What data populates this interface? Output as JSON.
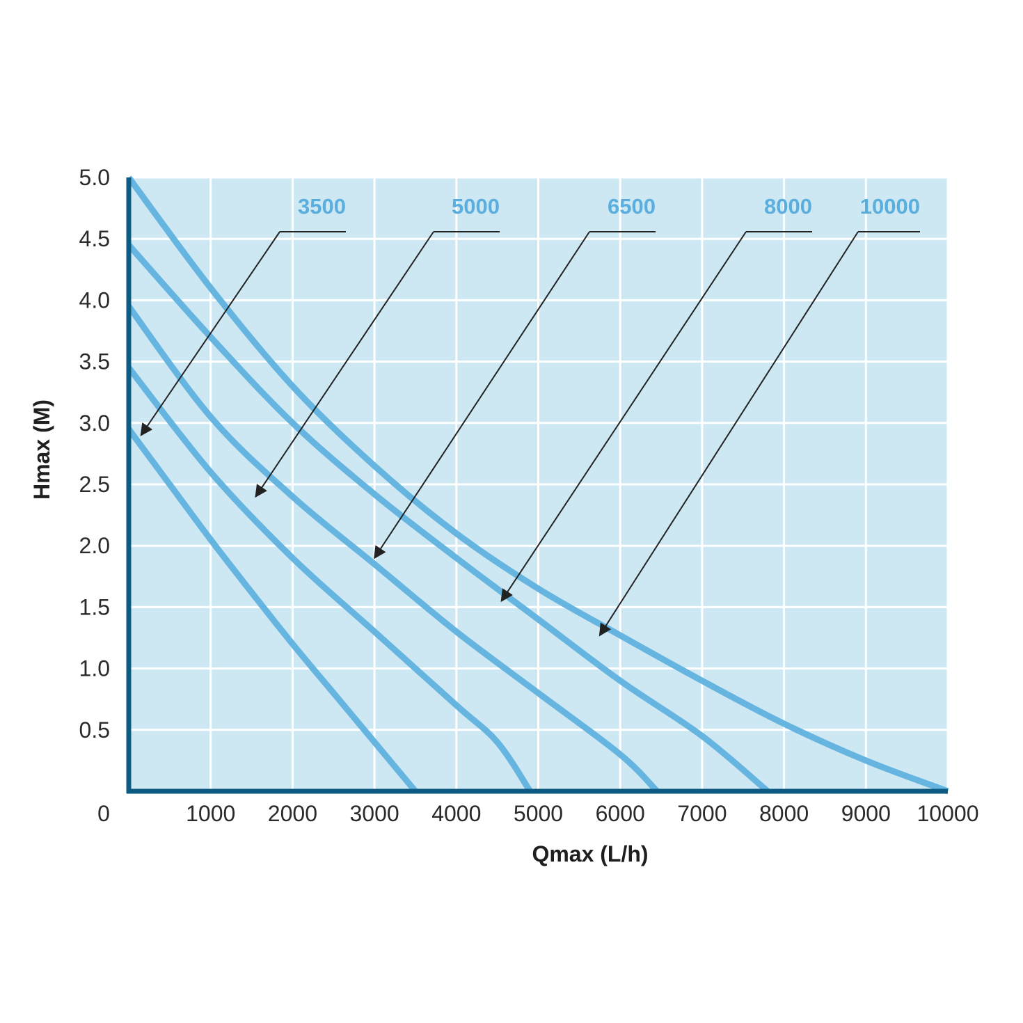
{
  "chart_data": {
    "type": "line",
    "title": "",
    "xlabel": "Qmax (L/h)",
    "ylabel": "Hmax (M)",
    "xlim": [
      0,
      10000
    ],
    "ylim": [
      0,
      5.0
    ],
    "x_ticks": [
      1000,
      2000,
      3000,
      4000,
      5000,
      6000,
      7000,
      8000,
      9000,
      10000
    ],
    "y_ticks": [
      0.5,
      1.0,
      1.5,
      2.0,
      2.5,
      3.0,
      3.5,
      4.0,
      4.5,
      5.0
    ],
    "x_tick_labels": [
      "1000",
      "2000",
      "3000",
      "4000",
      "5000",
      "6000",
      "7000",
      "8000",
      "9000",
      "10000"
    ],
    "y_tick_labels": [
      "0.5",
      "1.0",
      "1.5",
      "2.0",
      "2.5",
      "3.0",
      "3.5",
      "4.0",
      "4.5",
      "5.0"
    ],
    "origin_label": "0",
    "grid": true,
    "colors": {
      "plot_background": "#cde8f3",
      "grid": "#ffffff",
      "axis": "#0d5a82",
      "series_line": "#66b5e0",
      "series_label": "#5aaedd",
      "leader": "#222222"
    },
    "series": [
      {
        "name": "3500",
        "points": [
          [
            0,
            2.95
          ],
          [
            500,
            2.5
          ],
          [
            1000,
            2.05
          ],
          [
            1500,
            1.62
          ],
          [
            2000,
            1.2
          ],
          [
            2500,
            0.8
          ],
          [
            3000,
            0.4
          ],
          [
            3500,
            0.0
          ]
        ]
      },
      {
        "name": "5000",
        "points": [
          [
            0,
            3.45
          ],
          [
            1000,
            2.6
          ],
          [
            2000,
            1.9
          ],
          [
            3000,
            1.3
          ],
          [
            4000,
            0.7
          ],
          [
            4500,
            0.4
          ],
          [
            4900,
            0.0
          ]
        ]
      },
      {
        "name": "6500",
        "points": [
          [
            0,
            3.95
          ],
          [
            1000,
            3.05
          ],
          [
            2000,
            2.4
          ],
          [
            3000,
            1.85
          ],
          [
            4000,
            1.3
          ],
          [
            5000,
            0.8
          ],
          [
            6000,
            0.3
          ],
          [
            6450,
            0.0
          ]
        ]
      },
      {
        "name": "8000",
        "points": [
          [
            0,
            4.45
          ],
          [
            1000,
            3.7
          ],
          [
            2000,
            3.0
          ],
          [
            3000,
            2.42
          ],
          [
            4000,
            1.9
          ],
          [
            5000,
            1.4
          ],
          [
            6000,
            0.9
          ],
          [
            7000,
            0.45
          ],
          [
            7800,
            0.0
          ]
        ]
      },
      {
        "name": "10000",
        "points": [
          [
            0,
            5.0
          ],
          [
            1000,
            4.1
          ],
          [
            2000,
            3.3
          ],
          [
            3000,
            2.65
          ],
          [
            4000,
            2.1
          ],
          [
            5000,
            1.65
          ],
          [
            6000,
            1.27
          ],
          [
            7000,
            0.9
          ],
          [
            8000,
            0.55
          ],
          [
            9000,
            0.25
          ],
          [
            10000,
            0.0
          ]
        ]
      }
    ],
    "annotations": [
      {
        "label": "3500",
        "arrow_target": [
          150,
          2.9
        ]
      },
      {
        "label": "5000",
        "arrow_target": [
          1550,
          2.4
        ]
      },
      {
        "label": "6500",
        "arrow_target": [
          3000,
          1.9
        ]
      },
      {
        "label": "8000",
        "arrow_target": [
          4550,
          1.55
        ]
      },
      {
        "label": "10000",
        "arrow_target": [
          5750,
          1.27
        ]
      }
    ]
  }
}
